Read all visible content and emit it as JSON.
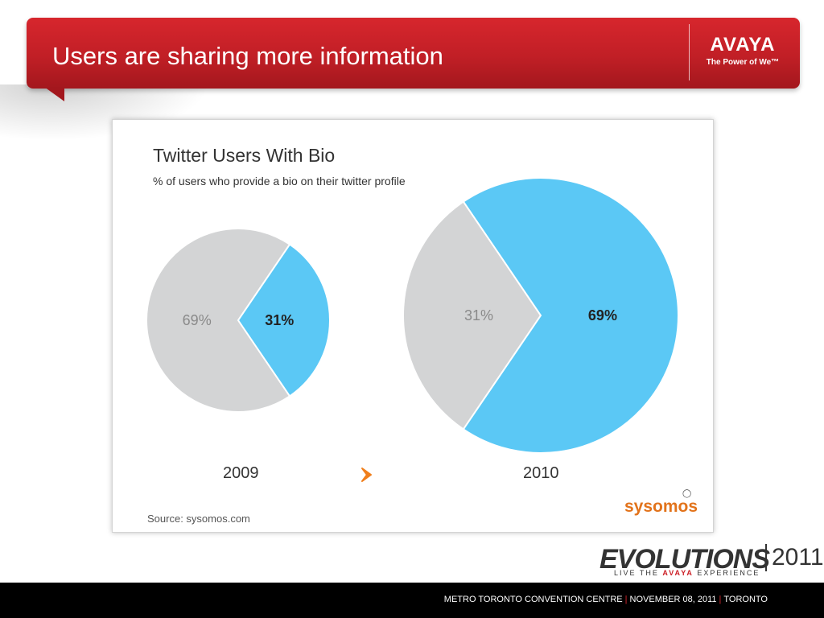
{
  "slide": {
    "title": "Users are sharing more information"
  },
  "brand": {
    "logo_word": "AVAYA",
    "tagline": "The Power of We™",
    "accent": "#cc1f26"
  },
  "chart_data": {
    "type": "pie",
    "title": "Twitter Users With Bio",
    "subtitle": "% of users who provide a bio on their twitter profile",
    "charts": [
      {
        "year": "2009",
        "slices": [
          {
            "value": 69,
            "label": "69%",
            "color": "#d3d4d5"
          },
          {
            "value": 31,
            "label": "31%",
            "color": "#5bc8f5"
          }
        ]
      },
      {
        "year": "2010",
        "slices": [
          {
            "value": 31,
            "label": "31%",
            "color": "#d3d4d5"
          },
          {
            "value": 69,
            "label": "69%",
            "color": "#5bc8f5"
          }
        ]
      }
    ],
    "arrow_color": "#f07f1c",
    "source": "Source: sysomos.com",
    "source_logo": "sysomos"
  },
  "event": {
    "name": "EVOLUTIONS",
    "year": "2011",
    "tag_prefix": "LIVE THE ",
    "tag_brand": "AVAYA",
    "tag_suffix": " EXPERIENCE"
  },
  "footer": {
    "venue": "METRO TORONTO CONVENTION CENTRE",
    "date": "NOVEMBER 08, 2011",
    "city": "TORONTO"
  }
}
